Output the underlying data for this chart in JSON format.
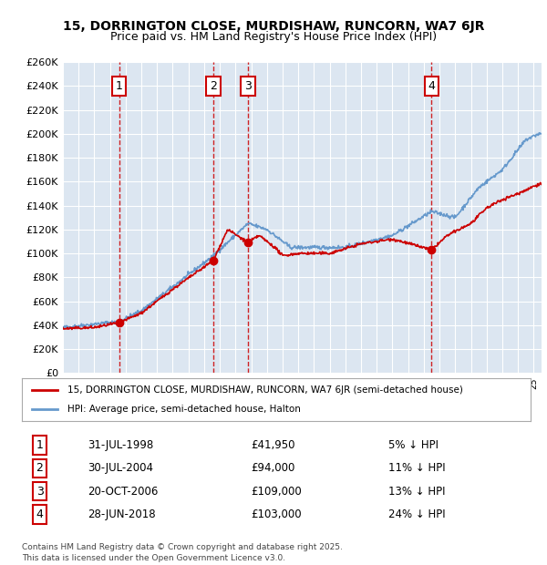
{
  "title_line1": "15, DORRINGTON CLOSE, MURDISHAW, RUNCORN, WA7 6JR",
  "title_line2": "Price paid vs. HM Land Registry's House Price Index (HPI)",
  "ylabel": "",
  "xlim_start": 1995.0,
  "xlim_end": 2025.5,
  "ylim_min": 0,
  "ylim_max": 260000,
  "ytick_step": 20000,
  "background_color": "#dce6f1",
  "plot_bg_color": "#dce6f1",
  "grid_color": "#ffffff",
  "red_line_color": "#cc0000",
  "blue_line_color": "#6699cc",
  "transaction_color": "#cc0000",
  "vline_color": "#cc0000",
  "label_box_color": "#cc0000",
  "transactions": [
    {
      "num": 1,
      "date_str": "31-JUL-1998",
      "year": 1998.58,
      "price": 41950,
      "pct": "5%",
      "direction": "↓"
    },
    {
      "num": 2,
      "date_str": "30-JUL-2004",
      "year": 2004.58,
      "price": 94000,
      "pct": "11%",
      "direction": "↓"
    },
    {
      "num": 3,
      "date_str": "20-OCT-2006",
      "year": 2006.8,
      "price": 109000,
      "pct": "13%",
      "direction": "↓"
    },
    {
      "num": 4,
      "date_str": "28-JUN-2018",
      "year": 2018.49,
      "price": 103000,
      "pct": "24%",
      "direction": "↓"
    }
  ],
  "legend_line1": "15, DORRINGTON CLOSE, MURDISHAW, RUNCORN, WA7 6JR (semi-detached house)",
  "legend_line2": "HPI: Average price, semi-detached house, Halton",
  "footer_line1": "Contains HM Land Registry data © Crown copyright and database right 2025.",
  "footer_line2": "This data is licensed under the Open Government Licence v3.0."
}
